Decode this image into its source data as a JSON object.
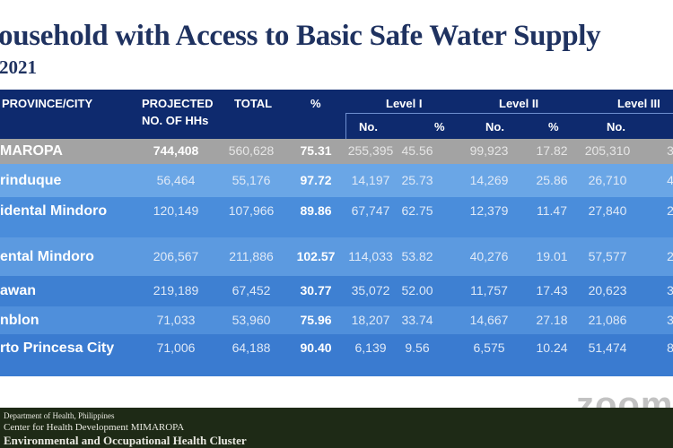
{
  "slide": {
    "title": "ousehold with Access to Basic Safe Water Supply",
    "subtitle": "2021"
  },
  "table": {
    "headers": {
      "province": "PROVINCE/CITY",
      "projected": "PROJECTED",
      "projected2": "NO. OF HHs",
      "total": "TOTAL",
      "pct": "%",
      "level1": "Level I",
      "level2": "Level II",
      "level3": "Level III",
      "no": "No.",
      "sub_pct": "%"
    },
    "rows": [
      {
        "name": "MAROPA",
        "projected": "744,408",
        "total": "560,628",
        "pct": "75.31",
        "l1_no": "255,395",
        "l1_pct": "45.56",
        "l2_no": "99,923",
        "l2_pct": "17.82",
        "l3_no": "205,310",
        "l3_pct": "3"
      },
      {
        "name": "rinduque",
        "projected": "56,464",
        "total": "55,176",
        "pct": "97.72",
        "l1_no": "14,197",
        "l1_pct": "25.73",
        "l2_no": "14,269",
        "l2_pct": "25.86",
        "l3_no": "26,710",
        "l3_pct": "4"
      },
      {
        "name": "idental Mindoro",
        "projected": "120,149",
        "total": "107,966",
        "pct": "89.86",
        "l1_no": "67,747",
        "l1_pct": "62.75",
        "l2_no": "12,379",
        "l2_pct": "11.47",
        "l3_no": "27,840",
        "l3_pct": "2"
      },
      {
        "name": "ental Mindoro",
        "projected": "206,567",
        "total": "211,886",
        "pct": "102.57",
        "l1_no": "114,033",
        "l1_pct": "53.82",
        "l2_no": "40,276",
        "l2_pct": "19.01",
        "l3_no": "57,577",
        "l3_pct": "2"
      },
      {
        "name": "awan",
        "projected": "219,189",
        "total": "67,452",
        "pct": "30.77",
        "l1_no": "35,072",
        "l1_pct": "52.00",
        "l2_no": "11,757",
        "l2_pct": "17.43",
        "l3_no": "20,623",
        "l3_pct": "3"
      },
      {
        "name": "nblon",
        "projected": "71,033",
        "total": "53,960",
        "pct": "75.96",
        "l1_no": "18,207",
        "l1_pct": "33.74",
        "l2_no": "14,667",
        "l2_pct": "27.18",
        "l3_no": "21,086",
        "l3_pct": "3"
      },
      {
        "name": "rto Princesa City",
        "projected": "71,006",
        "total": "64,188",
        "pct": "90.40",
        "l1_no": "6,139",
        "l1_pct": "9.56",
        "l2_no": "6,575",
        "l2_pct": "10.24",
        "l3_no": "51,474",
        "l3_pct": "8"
      }
    ]
  },
  "footer": {
    "line1": "Department of Health, Philippines",
    "line2": "Center for Health Development MIMAROPA",
    "line3": "Environmental and Occupational Health Cluster"
  },
  "watermark": {
    "text": "zoom"
  },
  "colors": {
    "header": "#0e2a6e",
    "region_row": "#a3a3a3",
    "row_blue": "#4a8ddb",
    "footer": "#1e2a16",
    "title": "#1f3260"
  }
}
